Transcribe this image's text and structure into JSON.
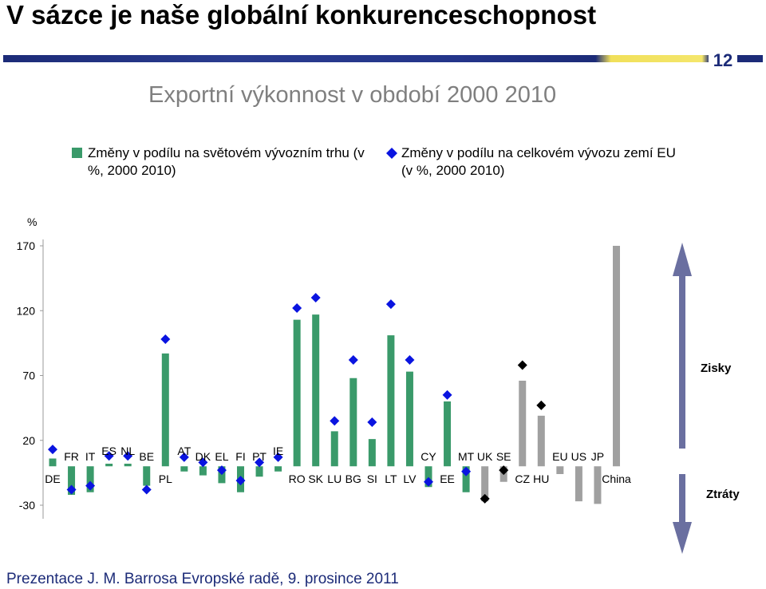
{
  "slide": {
    "title": "V sázce je naše globální konkurenceschopnost",
    "page_number": "12",
    "footer": "Prezentace J. M. Barrosa Evropské radě, 9. prosince 2011"
  },
  "colors": {
    "eu_bar": "#3a9a6a",
    "other_bar": "#a0a0a0",
    "eu_diamond": "#0a14e0",
    "other_diamond": "#000000",
    "arrow": "#6a6fa0",
    "banner": "#1c2b78"
  },
  "chart_data": {
    "type": "bar",
    "title": "Exportní výkonnost v období 2000 2010",
    "ylabel": "%",
    "ylim": [
      -30,
      170
    ],
    "yticks": [
      "170",
      "120",
      "70",
      "20",
      "-30"
    ],
    "zones": {
      "up": "Zisky",
      "down": "Ztráty"
    },
    "series": [
      {
        "name": "Změny v podílu na světovém vývozním trhu (v %, 2000 2010)",
        "marker": "bar"
      },
      {
        "name": "Změny v podílu na celkovém vývozu zemí EU (v %, 2000 2010)",
        "marker": "diamond"
      }
    ],
    "categories": [
      {
        "label": "DE",
        "world": 6,
        "eu": 13,
        "group": "eu",
        "pos": "below"
      },
      {
        "label": "FR",
        "world": -22,
        "eu": -18,
        "group": "eu",
        "pos": "above"
      },
      {
        "label": "IT",
        "world": -20,
        "eu": -15,
        "group": "eu",
        "pos": "above"
      },
      {
        "label": "ES",
        "world": 2,
        "eu": 8,
        "group": "eu",
        "pos": "above-high"
      },
      {
        "label": "NL",
        "world": 2,
        "eu": 8,
        "group": "eu",
        "pos": "above-high"
      },
      {
        "label": "BE",
        "world": -15,
        "eu": -18,
        "group": "eu",
        "pos": "above"
      },
      {
        "label": "PL",
        "world": 87,
        "eu": 98,
        "group": "eu",
        "pos": "below"
      },
      {
        "label": "AT",
        "world": -4,
        "eu": 7,
        "group": "eu",
        "pos": "above-high"
      },
      {
        "label": "DK",
        "world": -7,
        "eu": 3,
        "group": "eu",
        "pos": "above"
      },
      {
        "label": "EL",
        "world": -13,
        "eu": -3,
        "group": "eu",
        "pos": "above"
      },
      {
        "label": "FI",
        "world": -20,
        "eu": -11,
        "group": "eu",
        "pos": "above"
      },
      {
        "label": "PT",
        "world": -8,
        "eu": 3,
        "group": "eu",
        "pos": "above"
      },
      {
        "label": "IE",
        "world": -4,
        "eu": 7,
        "group": "eu",
        "pos": "above-high"
      },
      {
        "label": "RO",
        "world": 113,
        "eu": 122,
        "group": "eu",
        "pos": "below"
      },
      {
        "label": "SK",
        "world": 117,
        "eu": 130,
        "group": "eu",
        "pos": "below"
      },
      {
        "label": "LU",
        "world": 27,
        "eu": 35,
        "group": "eu",
        "pos": "below"
      },
      {
        "label": "BG",
        "world": 68,
        "eu": 82,
        "group": "eu",
        "pos": "below"
      },
      {
        "label": "SI",
        "world": 21,
        "eu": 34,
        "group": "eu",
        "pos": "below"
      },
      {
        "label": "LT",
        "world": 101,
        "eu": 125,
        "group": "eu",
        "pos": "below"
      },
      {
        "label": "LV",
        "world": 73,
        "eu": 82,
        "group": "eu",
        "pos": "below"
      },
      {
        "label": "CY",
        "world": -16,
        "eu": -12,
        "group": "eu",
        "pos": "above"
      },
      {
        "label": "EE",
        "world": 50,
        "eu": 55,
        "group": "eu",
        "pos": "below"
      },
      {
        "label": "MT",
        "world": -20,
        "eu": -4,
        "group": "eu",
        "pos": "above"
      },
      {
        "label": "UK",
        "world": -27,
        "eu": -25,
        "group": "other",
        "pos": "above"
      },
      {
        "label": "SE",
        "world": -12,
        "eu": -3,
        "group": "other",
        "pos": "above"
      },
      {
        "label": "CZ",
        "world": 66,
        "eu": 78,
        "group": "other",
        "pos": "below"
      },
      {
        "label": "HU",
        "world": 39,
        "eu": 47,
        "group": "other",
        "pos": "below"
      },
      {
        "label": "EU",
        "world": -6,
        "eu": null,
        "group": "other",
        "pos": "above"
      },
      {
        "label": "US",
        "world": -27,
        "eu": null,
        "group": "other",
        "pos": "above"
      },
      {
        "label": "JP",
        "world": -29,
        "eu": null,
        "group": "other",
        "pos": "above"
      },
      {
        "label": "China",
        "world": 170,
        "eu": null,
        "group": "other",
        "pos": "below"
      }
    ]
  }
}
